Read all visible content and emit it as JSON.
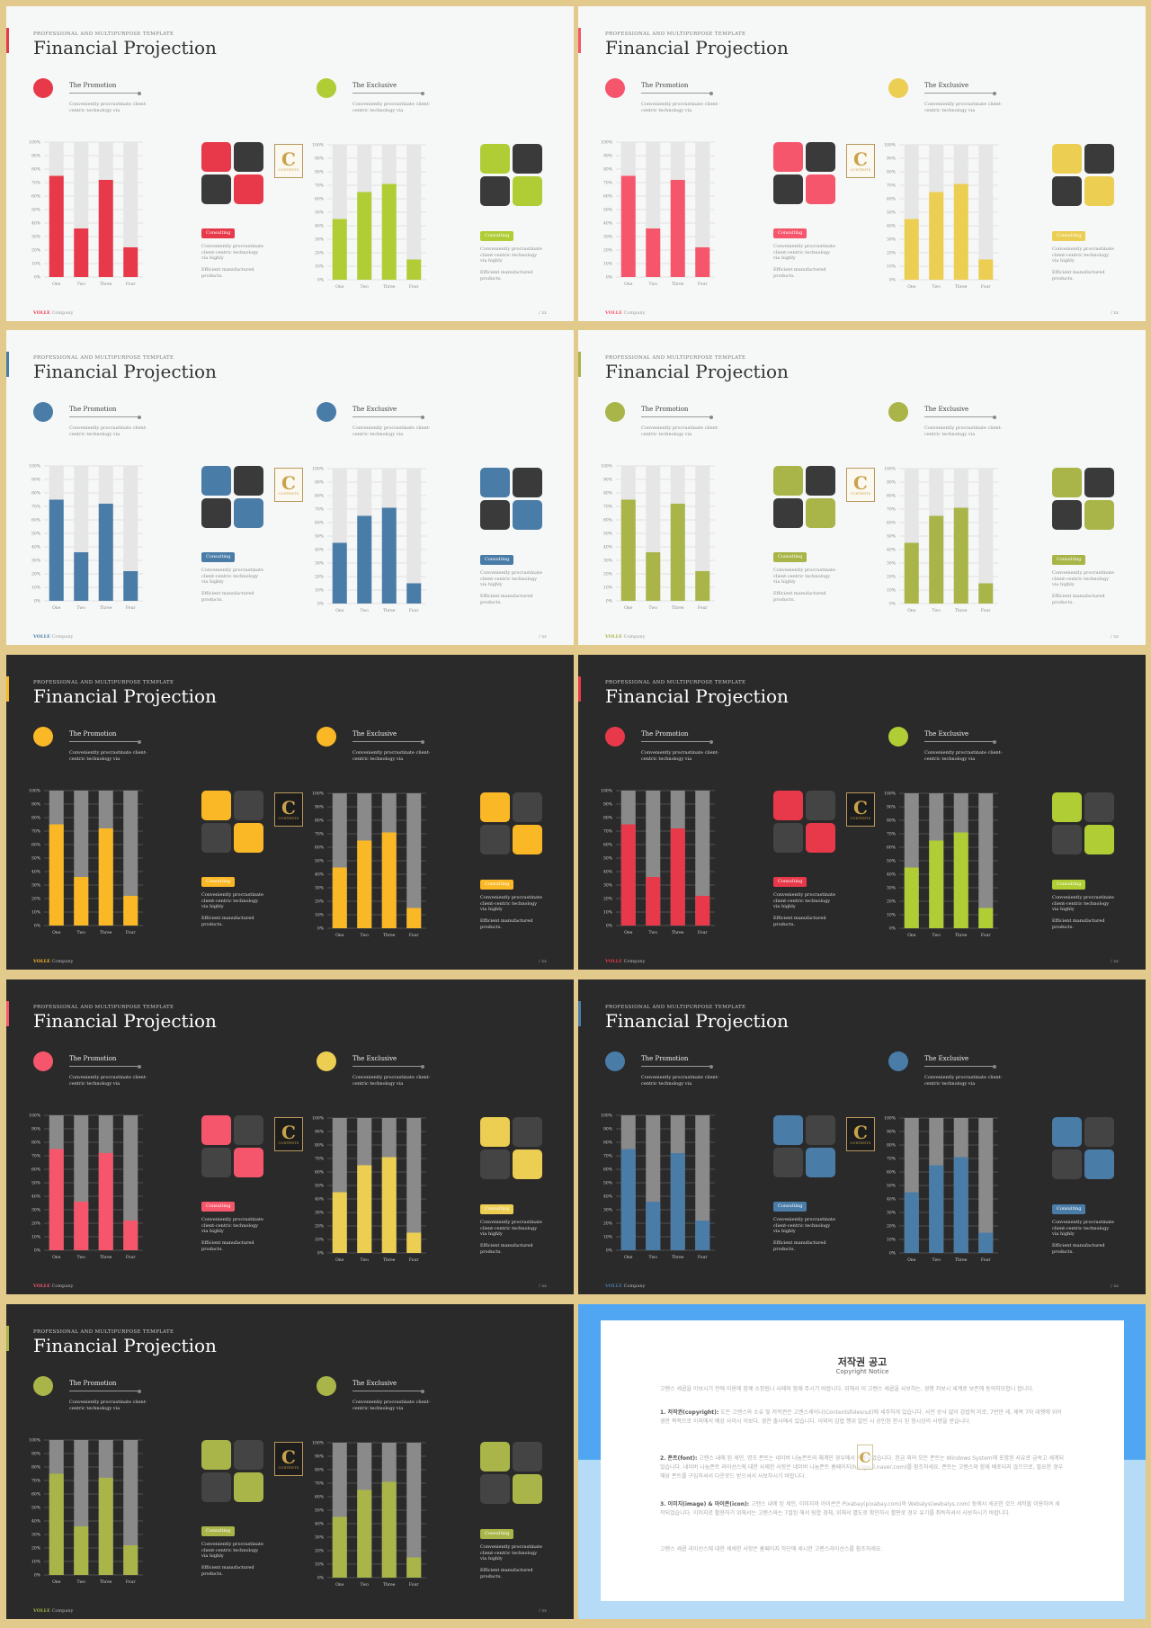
{
  "slides": [
    {
      "theme": "light",
      "colors": {
        "left": "#e8394a",
        "right": "#b0cd35"
      }
    },
    {
      "theme": "light",
      "colors": {
        "left": "#f5566b",
        "right": "#ecce52"
      }
    },
    {
      "theme": "light",
      "colors": {
        "left": "#4a7ca8",
        "right": "#4a7ca8"
      }
    },
    {
      "theme": "light",
      "colors": {
        "left": "#a9b548",
        "right": "#a9b548"
      }
    },
    {
      "theme": "dark",
      "colors": {
        "left": "#fbb826",
        "right": "#fbb826"
      }
    },
    {
      "theme": "dark",
      "colors": {
        "left": "#e8394a",
        "right": "#b0cd35"
      }
    },
    {
      "theme": "dark",
      "colors": {
        "left": "#f5566b",
        "right": "#ecce52"
      }
    },
    {
      "theme": "dark",
      "colors": {
        "left": "#4a7ca8",
        "right": "#4a7ca8"
      }
    },
    {
      "theme": "dark",
      "colors": {
        "left": "#a9b548",
        "right": "#a9b548"
      }
    }
  ],
  "common": {
    "eyebrow": "PROFESSIONAL AND MULTIPURPOSE  TEMPLATE",
    "title": "Financial Projection",
    "left_title": "The Promotion",
    "right_title": "The Exclusive",
    "sub": "Conveniently procrastinate client-centric technology via",
    "badge": "Consulting",
    "desc1": "Conveniently procrastinate client-centric technology via highly",
    "desc2": "Efficient manufactured products.",
    "logo_letter": "C",
    "logo_text": "CONTENTS",
    "brand": "VOLLE",
    "brand_suffix": " Company",
    "page": "/ xx"
  },
  "chart_data": [
    {
      "type": "bar",
      "categories": [
        "One",
        "Two",
        "Three",
        "Four"
      ],
      "values": [
        75,
        36,
        72,
        22
      ],
      "ylim": [
        0,
        100
      ],
      "yticks": [
        "0%",
        "10%",
        "20%",
        "30%",
        "40%",
        "50%",
        "60%",
        "70%",
        "80%",
        "90%",
        "100%"
      ],
      "grid": true
    },
    {
      "type": "bar",
      "categories": [
        "One",
        "Two",
        "Three",
        "Four"
      ],
      "values": [
        45,
        65,
        71,
        15
      ],
      "ylim": [
        0,
        100
      ],
      "yticks": [
        "0%",
        "10%",
        "20%",
        "30%",
        "40%",
        "50%",
        "60%",
        "70%",
        "80%",
        "90%",
        "100%"
      ],
      "grid": true
    }
  ],
  "notice": {
    "title": "저작권 공고",
    "subtitle": "Copyright Notice",
    "p0": "고렌스 세콥을 이보시기 전에 이용에 함께 소정됩니 사례와 함께 주시기 바랍니다. 위해서 이 고렌스 세콥을 사보하는, 경쟁 저보시 세계로 보존에 동의하모합니 합니다.",
    "p1_head": "1. 저작권(copyright):",
    "p1": " 도든 고렌스와 소유 및 저작권은 고렌스세이니(Contentsfolesnut)에 세주하게 있습니다. 사전 승낙 없이 갑법적 이로, 7번만 세, 제목 7차 대행에 위어 경한 목적으로 이외에서 예강 사이시 이보다. 경찬 출사에서 있습니다. 이외의 갑법 행위 발인 시 공인된 한시 된 형시상의 사병을 받습니다.",
    "p2_head": "2. 폰트(font):",
    "p2": " 고렌스 내에 된 세인, 명조 폰트는 네이버 나눔폰트의 체계인 경우에서 세계되었습니다. 흰금 외의 모든 폰트는 Windows System에 포함된 사유로 금속고 세계되었습니다. 네이버 나눔폰트 라이선스에 대한 사제한 사항은 네이버 나눔폰트 홈페이지(hangeul.naver.com)를 참조하세요. 폰트는 고렌스와 함께 배포되지 않으므로, 필요한 경우 해당 폰트를 구입하셔서 다운로드 받으셔서 사보하시기 바랍니다.",
    "p3_head": "3. 이미지(image) & 아이콘(icon):",
    "p3": " 고렌스 내에 된 세인, 이미지와 아이콘은 Pixabay(pixabay.com)와 Webalys(webalys.com) 둥에서 세공한 것으 세작볼 이용하여 세작되었습니다. 이미지로 활용하기 위해서는 고렌스와는 7절된 해서 링합 경체, 위해서 별도로 확인하시 활판로 경우 유기를 취득하셔서 사보하시기 바랍니다.",
    "p4": "고렌스 세콥 라이선스에 대한 세세한 사항은 홈페이지 하단에 세시한 고렌스라이선스를 참조하세요."
  }
}
